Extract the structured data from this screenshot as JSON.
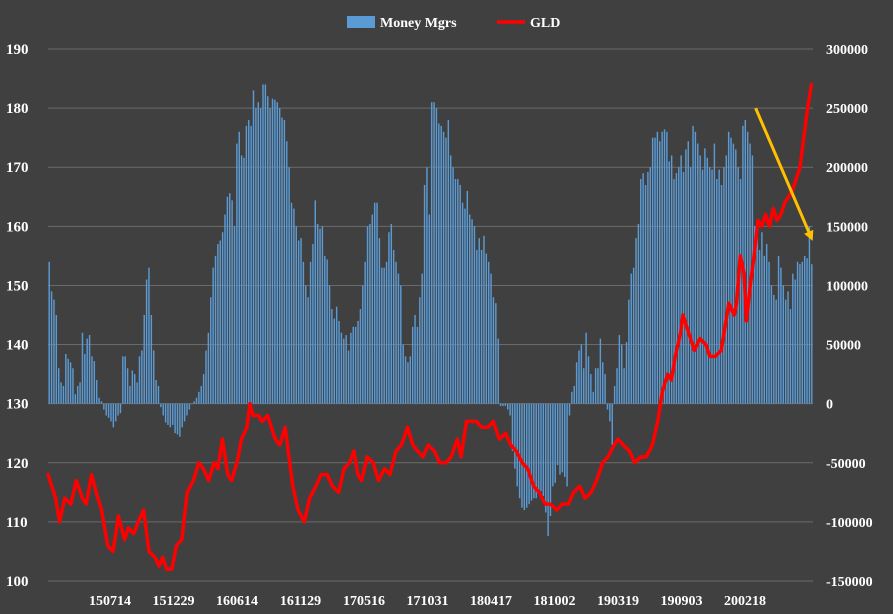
{
  "chart_data": {
    "type": "bar+line",
    "title": "",
    "background_color": "#404040",
    "grid": true,
    "legend": {
      "position": "top-center",
      "items": [
        {
          "label": "Money Mgrs",
          "marker": "bar",
          "color": "#5b9bd5"
        },
        {
          "label": "GLD",
          "marker": "line",
          "color": "#ff0000"
        }
      ]
    },
    "left_axis": {
      "label": "",
      "range": [
        100,
        190
      ],
      "ticks": [
        "100",
        "110",
        "120",
        "130",
        "140",
        "150",
        "160",
        "170",
        "180",
        "190"
      ]
    },
    "right_axis": {
      "label": "",
      "range": [
        -150000,
        300000
      ],
      "ticks": [
        "-150000",
        "-100000",
        "-50000",
        "0",
        "50000",
        "100000",
        "150000",
        "200000",
        "250000",
        "300000"
      ]
    },
    "x_axis": {
      "label": "",
      "tick_labels": [
        "150714",
        "151229",
        "160614",
        "161129",
        "170516",
        "171031",
        "180417",
        "181002",
        "190319",
        "190903",
        "200218"
      ]
    },
    "series": [
      {
        "name": "Money Mgrs",
        "kind": "bar",
        "axis": "right",
        "color": "#5b9bd5",
        "values": [
          120000,
          95000,
          88000,
          75000,
          30000,
          18000,
          15000,
          42000,
          38000,
          35000,
          30000,
          8000,
          15000,
          18000,
          60000,
          42000,
          55000,
          58000,
          40000,
          36000,
          20000,
          5000,
          2000,
          -5000,
          -10000,
          -12000,
          -15000,
          -20000,
          -15000,
          -10000,
          -8000,
          40000,
          40000,
          30000,
          15000,
          28000,
          25000,
          18000,
          40000,
          45000,
          75000,
          105000,
          115000,
          75000,
          45000,
          20000,
          15000,
          -3000,
          -10000,
          -16000,
          -18000,
          -20000,
          -18000,
          -25000,
          -26000,
          -28000,
          -20000,
          -15000,
          -10000,
          -5000,
          0,
          2000,
          5000,
          10000,
          15000,
          25000,
          45000,
          60000,
          90000,
          115000,
          125000,
          135000,
          138000,
          145000,
          160000,
          175000,
          178000,
          172000,
          150000,
          220000,
          230000,
          210000,
          208000,
          235000,
          240000,
          235000,
          265000,
          250000,
          255000,
          250000,
          270000,
          270000,
          260000,
          250000,
          258000,
          257000,
          255000,
          250000,
          242000,
          240000,
          222000,
          200000,
          170000,
          165000,
          150000,
          138000,
          140000,
          120000,
          100000,
          90000,
          120000,
          135000,
          172000,
          152000,
          148000,
          150000,
          125000,
          122000,
          100000,
          80000,
          72000,
          82000,
          70000,
          60000,
          55000,
          58000,
          45000,
          60000,
          65000,
          65000,
          70000,
          80000,
          100000,
          120000,
          150000,
          152000,
          160000,
          170000,
          170000,
          140000,
          115000,
          115000,
          120000,
          145000,
          152000,
          130000,
          120000,
          110000,
          100000,
          50000,
          40000,
          35000,
          40000,
          65000,
          75000,
          65000,
          90000,
          110000,
          185000,
          200000,
          160000,
          255000,
          255000,
          250000,
          237000,
          235000,
          230000,
          225000,
          240000,
          210000,
          200000,
          190000,
          190000,
          185000,
          170000,
          165000,
          180000,
          160000,
          156000,
          150000,
          130000,
          140000,
          130000,
          142000,
          127000,
          120000,
          110000,
          90000,
          85000,
          55000,
          -2000,
          -2000,
          -2000,
          -5000,
          -10000,
          -40000,
          -55000,
          -70000,
          -80000,
          -88000,
          -90000,
          -88000,
          -85000,
          -82000,
          -80000,
          -80000,
          -76000,
          -74000,
          -78000,
          -92000,
          -112000,
          -95000,
          -70000,
          -67000,
          -52000,
          -60000,
          -58000,
          -62000,
          -70000,
          -10000,
          10000,
          15000,
          35000,
          45000,
          50000,
          30000,
          60000,
          40000,
          25000,
          10000,
          30000,
          30000,
          55000,
          35000,
          25000,
          -5000,
          -15000,
          -35000,
          15000,
          30000,
          58000,
          50000,
          30000,
          52000,
          88000,
          110000,
          115000,
          140000,
          152000,
          190000,
          195000,
          185000,
          196000,
          200000,
          225000,
          225000,
          230000,
          222000,
          230000,
          232000,
          230000,
          205000,
          210000,
          190000,
          195000,
          200000,
          210000,
          196000,
          215000,
          222000,
          200000,
          235000,
          230000,
          220000,
          210000,
          198000,
          216000,
          208000,
          200000,
          198000,
          220000,
          190000,
          198000,
          185000,
          200000,
          210000,
          230000,
          225000,
          220000,
          215000,
          200000,
          190000,
          235000,
          240000,
          230000,
          220000,
          210000,
          150000,
          140000,
          130000,
          145000,
          125000,
          135000,
          120000,
          100000,
          92000,
          88000,
          125000,
          115000,
          100000,
          88000,
          95000,
          80000,
          110000,
          105000,
          120000,
          118000,
          120000,
          125000,
          123000,
          150000,
          118000
        ]
      },
      {
        "name": "GLD",
        "kind": "line",
        "axis": "left",
        "color": "#ff0000",
        "points": [
          {
            "x": 0.0,
            "y": 118
          },
          {
            "x": 0.01,
            "y": 114
          },
          {
            "x": 0.015,
            "y": 110
          },
          {
            "x": 0.022,
            "y": 114
          },
          {
            "x": 0.03,
            "y": 113
          },
          {
            "x": 0.037,
            "y": 117
          },
          {
            "x": 0.045,
            "y": 114
          },
          {
            "x": 0.05,
            "y": 113
          },
          {
            "x": 0.057,
            "y": 118
          },
          {
            "x": 0.063,
            "y": 115
          },
          {
            "x": 0.07,
            "y": 112
          },
          {
            "x": 0.078,
            "y": 106
          },
          {
            "x": 0.085,
            "y": 105
          },
          {
            "x": 0.092,
            "y": 111
          },
          {
            "x": 0.1,
            "y": 107
          },
          {
            "x": 0.105,
            "y": 109
          },
          {
            "x": 0.112,
            "y": 108
          },
          {
            "x": 0.118,
            "y": 110
          },
          {
            "x": 0.125,
            "y": 112
          },
          {
            "x": 0.132,
            "y": 105
          },
          {
            "x": 0.14,
            "y": 104
          },
          {
            "x": 0.145,
            "y": 102.5
          },
          {
            "x": 0.15,
            "y": 104
          },
          {
            "x": 0.155,
            "y": 102
          },
          {
            "x": 0.162,
            "y": 102
          },
          {
            "x": 0.168,
            "y": 106
          },
          {
            "x": 0.175,
            "y": 107
          },
          {
            "x": 0.182,
            "y": 115
          },
          {
            "x": 0.19,
            "y": 117
          },
          {
            "x": 0.197,
            "y": 120
          },
          {
            "x": 0.203,
            "y": 119
          },
          {
            "x": 0.21,
            "y": 117
          },
          {
            "x": 0.217,
            "y": 120
          },
          {
            "x": 0.222,
            "y": 119
          },
          {
            "x": 0.228,
            "y": 124
          },
          {
            "x": 0.235,
            "y": 118
          },
          {
            "x": 0.24,
            "y": 117
          },
          {
            "x": 0.247,
            "y": 120
          },
          {
            "x": 0.253,
            "y": 124
          },
          {
            "x": 0.26,
            "y": 126
          },
          {
            "x": 0.264,
            "y": 130
          },
          {
            "x": 0.268,
            "y": 128
          },
          {
            "x": 0.275,
            "y": 128
          },
          {
            "x": 0.28,
            "y": 127
          },
          {
            "x": 0.287,
            "y": 128
          },
          {
            "x": 0.292,
            "y": 126
          },
          {
            "x": 0.297,
            "y": 124
          },
          {
            "x": 0.303,
            "y": 123
          },
          {
            "x": 0.31,
            "y": 126
          },
          {
            "x": 0.315,
            "y": 121
          },
          {
            "x": 0.32,
            "y": 116
          },
          {
            "x": 0.327,
            "y": 112
          },
          {
            "x": 0.335,
            "y": 110
          },
          {
            "x": 0.342,
            "y": 114
          },
          {
            "x": 0.35,
            "y": 116
          },
          {
            "x": 0.357,
            "y": 118
          },
          {
            "x": 0.365,
            "y": 118
          },
          {
            "x": 0.372,
            "y": 116
          },
          {
            "x": 0.38,
            "y": 115
          },
          {
            "x": 0.387,
            "y": 119
          },
          {
            "x": 0.394,
            "y": 120
          },
          {
            "x": 0.4,
            "y": 122
          },
          {
            "x": 0.405,
            "y": 118
          },
          {
            "x": 0.41,
            "y": 117
          },
          {
            "x": 0.417,
            "y": 121
          },
          {
            "x": 0.425,
            "y": 120
          },
          {
            "x": 0.432,
            "y": 117
          },
          {
            "x": 0.44,
            "y": 119
          },
          {
            "x": 0.447,
            "y": 118
          },
          {
            "x": 0.455,
            "y": 122
          },
          {
            "x": 0.462,
            "y": 123
          },
          {
            "x": 0.47,
            "y": 126
          },
          {
            "x": 0.477,
            "y": 123
          },
          {
            "x": 0.483,
            "y": 122
          },
          {
            "x": 0.49,
            "y": 121
          },
          {
            "x": 0.497,
            "y": 123
          },
          {
            "x": 0.505,
            "y": 122
          },
          {
            "x": 0.512,
            "y": 120
          },
          {
            "x": 0.52,
            "y": 120
          },
          {
            "x": 0.527,
            "y": 121
          },
          {
            "x": 0.535,
            "y": 124
          },
          {
            "x": 0.54,
            "y": 121
          },
          {
            "x": 0.547,
            "y": 127
          },
          {
            "x": 0.553,
            "y": 127
          },
          {
            "x": 0.56,
            "y": 127
          },
          {
            "x": 0.567,
            "y": 126
          },
          {
            "x": 0.575,
            "y": 126
          },
          {
            "x": 0.582,
            "y": 127
          },
          {
            "x": 0.59,
            "y": 124
          },
          {
            "x": 0.598,
            "y": 125
          },
          {
            "x": 0.605,
            "y": 123
          },
          {
            "x": 0.612,
            "y": 122
          },
          {
            "x": 0.62,
            "y": 120
          },
          {
            "x": 0.627,
            "y": 119
          },
          {
            "x": 0.635,
            "y": 116
          },
          {
            "x": 0.642,
            "y": 115
          },
          {
            "x": 0.65,
            "y": 113
          },
          {
            "x": 0.657,
            "y": 113
          },
          {
            "x": 0.665,
            "y": 112
          },
          {
            "x": 0.672,
            "y": 113
          },
          {
            "x": 0.68,
            "y": 113
          },
          {
            "x": 0.687,
            "y": 115
          },
          {
            "x": 0.695,
            "y": 116
          },
          {
            "x": 0.702,
            "y": 114
          },
          {
            "x": 0.71,
            "y": 115
          },
          {
            "x": 0.717,
            "y": 117
          },
          {
            "x": 0.725,
            "y": 120
          },
          {
            "x": 0.732,
            "y": 121
          },
          {
            "x": 0.74,
            "y": 123
          },
          {
            "x": 0.745,
            "y": 124
          },
          {
            "x": 0.752,
            "y": 123
          },
          {
            "x": 0.76,
            "y": 122
          },
          {
            "x": 0.767,
            "y": 120
          },
          {
            "x": 0.775,
            "y": 121
          },
          {
            "x": 0.782,
            "y": 121
          },
          {
            "x": 0.79,
            "y": 123
          },
          {
            "x": 0.797,
            "y": 127
          },
          {
            "x": 0.803,
            "y": 132
          },
          {
            "x": 0.81,
            "y": 135
          },
          {
            "x": 0.815,
            "y": 134
          },
          {
            "x": 0.82,
            "y": 138
          },
          {
            "x": 0.827,
            "y": 142
          },
          {
            "x": 0.83,
            "y": 145
          },
          {
            "x": 0.835,
            "y": 143
          },
          {
            "x": 0.84,
            "y": 141
          },
          {
            "x": 0.845,
            "y": 139
          },
          {
            "x": 0.852,
            "y": 141
          },
          {
            "x": 0.86,
            "y": 140
          },
          {
            "x": 0.865,
            "y": 138
          },
          {
            "x": 0.872,
            "y": 138
          },
          {
            "x": 0.88,
            "y": 139
          },
          {
            "x": 0.885,
            "y": 143
          },
          {
            "x": 0.89,
            "y": 147
          },
          {
            "x": 0.897,
            "y": 145
          },
          {
            "x": 0.9,
            "y": 147
          },
          {
            "x": 0.905,
            "y": 155
          },
          {
            "x": 0.91,
            "y": 152
          },
          {
            "x": 0.913,
            "y": 144
          },
          {
            "x": 0.918,
            "y": 150
          },
          {
            "x": 0.923,
            "y": 155
          },
          {
            "x": 0.928,
            "y": 161
          },
          {
            "x": 0.933,
            "y": 160
          },
          {
            "x": 0.938,
            "y": 162
          },
          {
            "x": 0.943,
            "y": 160
          },
          {
            "x": 0.948,
            "y": 163
          },
          {
            "x": 0.953,
            "y": 161
          },
          {
            "x": 0.958,
            "y": 162
          },
          {
            "x": 0.963,
            "y": 164
          },
          {
            "x": 0.968,
            "y": 165
          },
          {
            "x": 0.973,
            "y": 166
          },
          {
            "x": 0.978,
            "y": 168
          },
          {
            "x": 0.983,
            "y": 170
          },
          {
            "x": 0.988,
            "y": 175
          },
          {
            "x": 0.993,
            "y": 180
          },
          {
            "x": 0.998,
            "y": 184
          }
        ]
      }
    ],
    "annotations": [
      {
        "type": "arrow",
        "color": "#ffc000",
        "from": {
          "x": 0.925,
          "y": 250000
        },
        "to": {
          "x": 0.998,
          "y": 140000
        }
      }
    ]
  }
}
